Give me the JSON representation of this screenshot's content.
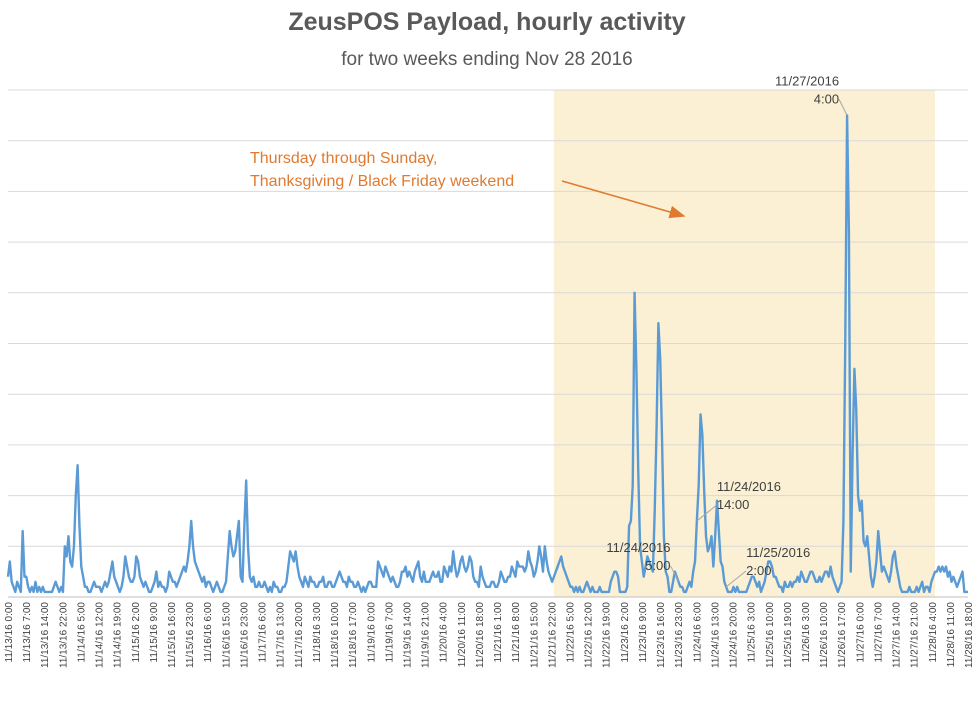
{
  "chart_data": {
    "type": "line",
    "title": "ZeusPOS Payload, hourly activity",
    "subtitle": "for two weeks ending Nov 28 2016",
    "xlabel": "",
    "ylabel": "",
    "grid": true,
    "y_tick_labels_shown": false,
    "ylim": [
      0,
      10
    ],
    "x_tick_labels": [
      "11/13/16 0:00",
      "11/13/16 7:00",
      "11/13/16 14:00",
      "11/13/16 22:00",
      "11/14/16 5:00",
      "11/14/16 12:00",
      "11/14/16 19:00",
      "11/15/16 2:00",
      "11/15/16 9:00",
      "11/15/16 16:00",
      "11/15/16 23:00",
      "11/16/16 6:00",
      "11/16/16 15:00",
      "11/16/16 23:00",
      "11/17/16 6:00",
      "11/17/16 13:00",
      "11/17/16 20:00",
      "11/18/16 3:00",
      "11/18/16 10:00",
      "11/18/16 17:00",
      "11/19/16 0:00",
      "11/19/16 7:00",
      "11/19/16 14:00",
      "11/19/16 21:00",
      "11/20/16 4:00",
      "11/20/16 11:00",
      "11/20/16 18:00",
      "11/21/16 1:00",
      "11/21/16 8:00",
      "11/21/16 15:00",
      "11/21/16 22:00",
      "11/22/16 5:00",
      "11/22/16 12:00",
      "11/22/16 19:00",
      "11/23/16 2:00",
      "11/23/16 9:00",
      "11/23/16 16:00",
      "11/23/16 23:00",
      "11/24/16 6:00",
      "11/24/16 13:00",
      "11/24/16 20:00",
      "11/25/16 3:00",
      "11/25/16 10:00",
      "11/25/16 19:00",
      "11/26/16 3:00",
      "11/26/16 10:00",
      "11/26/16 17:00",
      "11/27/16 0:00",
      "11/27/16 7:00",
      "11/27/16 14:00",
      "11/27/16 21:00",
      "11/28/16 4:00",
      "11/28/16 11:00",
      "11/28/16 18:00"
    ],
    "highlight_range": [
      298,
      506
    ],
    "highlight_color": "#FBF0D3",
    "series": [
      {
        "color": "#5B9BD5",
        "values": [
          0.4,
          0.7,
          0.3,
          0.2,
          0.1,
          0.3,
          0.2,
          0.1,
          1.3,
          0.4,
          0.4,
          0.2,
          0.1,
          0.2,
          0.1,
          0.3,
          0.1,
          0.2,
          0.1,
          0.2,
          0.1,
          0.1,
          0.1,
          0.1,
          0.1,
          0.2,
          0.3,
          0.2,
          0.1,
          0.2,
          0.1,
          1.0,
          0.8,
          1.2,
          0.7,
          0.6,
          1.0,
          2.0,
          2.6,
          1.4,
          0.6,
          0.4,
          0.2,
          0.2,
          0.1,
          0.1,
          0.2,
          0.3,
          0.2,
          0.2,
          0.2,
          0.1,
          0.2,
          0.3,
          0.2,
          0.3,
          0.5,
          0.7,
          0.4,
          0.3,
          0.2,
          0.1,
          0.2,
          0.4,
          0.8,
          0.6,
          0.4,
          0.3,
          0.3,
          0.4,
          0.8,
          0.7,
          0.4,
          0.3,
          0.2,
          0.3,
          0.2,
          0.1,
          0.1,
          0.2,
          0.3,
          0.5,
          0.2,
          0.3,
          0.2,
          0.2,
          0.1,
          0.2,
          0.5,
          0.4,
          0.3,
          0.3,
          0.2,
          0.3,
          0.4,
          0.5,
          0.6,
          0.5,
          0.7,
          1.0,
          1.5,
          1.0,
          0.7,
          0.6,
          0.5,
          0.4,
          0.3,
          0.4,
          0.2,
          0.3,
          0.3,
          0.2,
          0.1,
          0.2,
          0.3,
          0.2,
          0.1,
          0.1,
          0.2,
          0.3,
          0.8,
          1.3,
          1.0,
          0.8,
          0.9,
          1.2,
          1.5,
          0.4,
          0.3,
          1.4,
          2.3,
          1.0,
          0.4,
          0.3,
          0.4,
          0.2,
          0.2,
          0.3,
          0.2,
          0.2,
          0.3,
          0.2,
          0.1,
          0.2,
          0.1,
          0.3,
          0.2,
          0.2,
          0.1,
          0.1,
          0.2,
          0.2,
          0.3,
          0.6,
          0.9,
          0.8,
          0.7,
          0.9,
          0.6,
          0.4,
          0.3,
          0.2,
          0.4,
          0.3,
          0.2,
          0.4,
          0.3,
          0.3,
          0.2,
          0.2,
          0.3,
          0.3,
          0.4,
          0.2,
          0.2,
          0.3,
          0.3,
          0.2,
          0.2,
          0.3,
          0.4,
          0.5,
          0.4,
          0.3,
          0.3,
          0.2,
          0.4,
          0.3,
          0.3,
          0.2,
          0.2,
          0.3,
          0.2,
          0.1,
          0.2,
          0.1,
          0.2,
          0.3,
          0.3,
          0.2,
          0.2,
          0.2,
          0.7,
          0.6,
          0.5,
          0.4,
          0.6,
          0.5,
          0.4,
          0.3,
          0.4,
          0.3,
          0.2,
          0.2,
          0.3,
          0.5,
          0.5,
          0.6,
          0.4,
          0.5,
          0.4,
          0.3,
          0.5,
          0.6,
          0.7,
          0.4,
          0.3,
          0.5,
          0.3,
          0.3,
          0.3,
          0.4,
          0.5,
          0.4,
          0.4,
          0.5,
          0.3,
          0.3,
          0.6,
          0.5,
          0.4,
          0.6,
          0.5,
          0.9,
          0.6,
          0.4,
          0.5,
          0.7,
          0.8,
          0.6,
          0.5,
          0.6,
          0.8,
          0.7,
          0.4,
          0.3,
          0.3,
          0.2,
          0.6,
          0.4,
          0.3,
          0.2,
          0.2,
          0.2,
          0.3,
          0.3,
          0.2,
          0.2,
          0.3,
          0.5,
          0.4,
          0.3,
          0.3,
          0.4,
          0.4,
          0.6,
          0.5,
          0.4,
          0.7,
          0.6,
          0.6,
          0.6,
          0.5,
          0.6,
          0.9,
          0.7,
          0.6,
          0.4,
          0.5,
          0.7,
          1.0,
          0.8,
          0.5,
          1.0,
          0.7,
          0.5,
          0.4,
          0.3,
          0.4,
          0.5,
          0.6,
          0.7,
          0.8,
          0.6,
          0.5,
          0.4,
          0.3,
          0.2,
          0.2,
          0.1,
          0.2,
          0.1,
          0.2,
          0.1,
          0.1,
          0.2,
          0.3,
          0.2,
          0.1,
          0.2,
          0.1,
          0.1,
          0.1,
          0.2,
          0.1,
          0.1,
          0.1,
          0.1,
          0.1,
          0.3,
          0.4,
          0.5,
          0.5,
          0.4,
          0.1,
          0.1,
          0.1,
          0.1,
          0.2,
          1.4,
          1.5,
          2.2,
          6.0,
          4.5,
          2.5,
          1.0,
          0.7,
          0.4,
          0.6,
          0.8,
          0.7,
          0.6,
          0.5,
          1.7,
          3.3,
          5.4,
          4.7,
          3.1,
          1.2,
          0.5,
          0.4,
          0.1,
          0.1,
          0.3,
          0.5,
          0.4,
          0.3,
          0.2,
          0.2,
          0.1,
          0.1,
          0.2,
          0.3,
          0.2,
          0.5,
          0.7,
          1.5,
          2.2,
          3.6,
          3.2,
          2.1,
          1.2,
          0.9,
          1.0,
          1.2,
          0.6,
          1.2,
          1.9,
          1.3,
          0.7,
          0.6,
          0.3,
          0.2,
          0.1,
          0.1,
          0.1,
          0.2,
          0.1,
          0.2,
          0.1,
          0.1,
          0.1,
          0.1,
          0.1,
          0.2,
          0.3,
          0.4,
          0.4,
          0.3,
          0.2,
          0.3,
          0.1,
          0.2,
          0.3,
          0.5,
          0.7,
          0.7,
          0.6,
          0.4,
          0.4,
          0.3,
          0.2,
          0.2,
          0.1,
          0.3,
          0.2,
          0.2,
          0.3,
          0.2,
          0.3,
          0.3,
          0.4,
          0.3,
          0.5,
          0.4,
          0.3,
          0.3,
          0.4,
          0.5,
          0.5,
          0.4,
          0.3,
          0.3,
          0.4,
          0.3,
          0.4,
          0.5,
          0.5,
          0.4,
          0.6,
          0.4,
          0.3,
          0.2,
          0.1,
          0.2,
          0.3,
          1.5,
          5.0,
          9.5,
          7.2,
          0.5,
          2.8,
          4.5,
          3.7,
          2.0,
          1.7,
          1.9,
          1.1,
          1.0,
          1.2,
          0.8,
          0.4,
          0.2,
          0.4,
          0.7,
          1.3,
          0.9,
          0.5,
          0.6,
          0.5,
          0.4,
          0.3,
          0.5,
          0.8,
          0.9,
          0.6,
          0.4,
          0.2,
          0.1,
          0.1,
          0.1,
          0.1,
          0.2,
          0.1,
          0.1,
          0.1,
          0.2,
          0.1,
          0.2,
          0.3,
          0.1,
          0.2,
          0.2,
          0.1,
          0.3,
          0.4,
          0.5,
          0.5,
          0.6,
          0.5,
          0.6,
          0.5,
          0.6,
          0.4,
          0.5,
          0.3,
          0.4,
          0.3,
          0.2,
          0.3,
          0.4,
          0.5,
          0.1,
          0.1,
          0.1
        ]
      }
    ],
    "annotations": [
      {
        "index": 366,
        "lines": [
          "11/24/2016",
          "5:00"
        ],
        "label_pos": "upper-left"
      },
      {
        "index": 376,
        "lines": [
          "11/24/2016",
          "14:00"
        ],
        "label_pos": "upper-right"
      },
      {
        "index": 392,
        "lines": [
          "11/25/2016",
          "2:00"
        ],
        "label_pos": "upper-right"
      },
      {
        "index": 458,
        "lines": [
          "11/27/2016",
          "4:00"
        ],
        "label_pos": "upper-left"
      }
    ],
    "note": {
      "lines": [
        "Thursday through Sunday,",
        "Thanksgiving / Black Friday weekend"
      ],
      "color": "#E07A30"
    }
  }
}
